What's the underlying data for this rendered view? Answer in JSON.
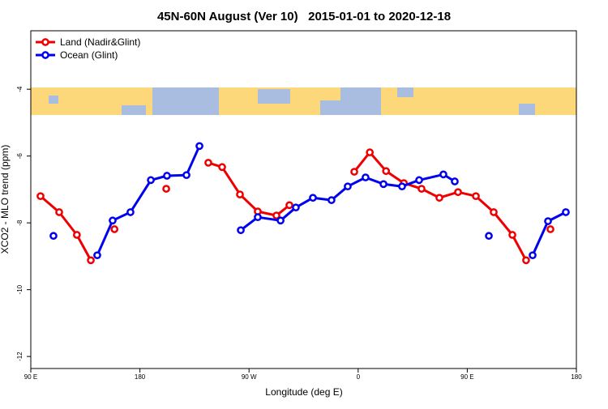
{
  "chart_data": {
    "type": "line",
    "title": "45N-60N August (Ver 10)   2015-01-01 to 2020-12-18",
    "xlabel": "Longitude (deg E)",
    "ylabel": "XCO2 - MLO trend (ppm)",
    "xlim": [
      90,
      540
    ],
    "ylim": [
      -12.36,
      -2.25
    ],
    "xticks": [
      {
        "value": 90,
        "label": "90 E"
      },
      180,
      {
        "value": 270,
        "label": "90 W"
      },
      {
        "value": 360,
        "label": "0"
      },
      {
        "value": 450,
        "label": "90 E"
      },
      {
        "value": 540,
        "label": "180"
      }
    ],
    "yticks": [
      -12,
      -10,
      -8,
      -6,
      -4
    ],
    "legend": "top-left",
    "series": [
      {
        "name": "Land (Nadir&Glint)",
        "color": "#ee0000",
        "x": [
          98,
          113.4,
          128,
          139.5,
          null,
          159,
          null,
          201.7,
          null,
          236.4,
          247.8,
          262.5,
          277.2,
          292.6,
          303.3,
          null,
          356.8,
          369.6,
          383,
          397.7,
          412.3,
          427,
          442.4,
          457.1,
          471.8,
          487.2,
          498.5,
          null,
          518.6
        ],
        "values": [
          -7.2,
          -7.68,
          -8.36,
          -9.12,
          null,
          -8.19,
          null,
          -6.98,
          null,
          -6.2,
          -6.33,
          -7.15,
          -7.66,
          -7.78,
          -7.47,
          null,
          -6.47,
          -5.89,
          -6.45,
          -6.81,
          -6.98,
          -7.25,
          -7.08,
          -7.2,
          -7.68,
          -8.36,
          -9.12,
          null,
          -8.19
        ]
      },
      {
        "name": "Ocean (Glint)",
        "color": "#0000ee",
        "x": [
          108.7,
          null,
          144.8,
          157.5,
          172.2,
          189,
          202.3,
          218.4,
          229.1,
          null,
          263.2,
          277.2,
          296,
          308.6,
          322.7,
          338,
          351.4,
          366.1,
          380.9,
          396.2,
          410.3,
          430.3,
          439.7,
          null,
          467.8,
          null,
          503.9,
          516.6,
          531.3
        ],
        "values": [
          -8.39,
          null,
          -8.97,
          -7.93,
          -7.68,
          -6.72,
          -6.59,
          -6.57,
          -5.7,
          null,
          -8.22,
          -7.83,
          -7.93,
          -7.54,
          -7.25,
          -7.32,
          -6.91,
          -6.64,
          -6.84,
          -6.91,
          -6.72,
          -6.55,
          -6.76,
          null,
          -8.39,
          null,
          -8.97,
          -7.95,
          -7.68
        ]
      }
    ]
  }
}
